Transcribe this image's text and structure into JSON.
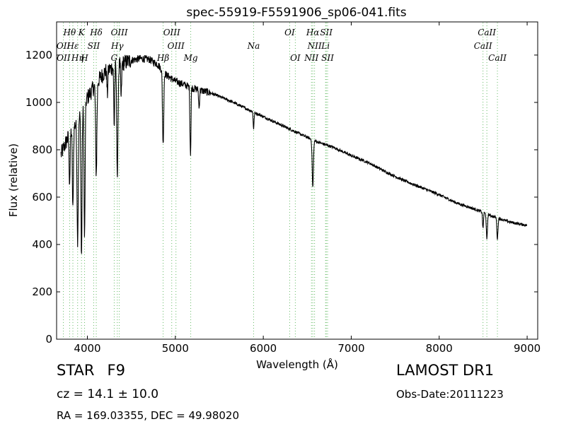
{
  "chart_data": {
    "type": "line",
    "title": "spec-55919-F5591906_sp06-041.fits",
    "xlabel": "Wavelength (Å)",
    "ylabel": "Flux (relative)",
    "xlim": [
      3650,
      9120
    ],
    "ylim": [
      0,
      1340
    ],
    "xticks": [
      4000,
      5000,
      6000,
      7000,
      8000,
      9000
    ],
    "yticks": [
      0,
      200,
      400,
      600,
      800,
      1000,
      1200
    ],
    "grid": false,
    "line_color": "#000000",
    "marker_color": "#66bb66",
    "continuum": {
      "x": [
        3700,
        3800,
        3900,
        4000,
        4100,
        4200,
        4300,
        4400,
        4500,
        4600,
        4700,
        4800,
        4900,
        5000,
        5200,
        5400,
        5600,
        5800,
        6000,
        6200,
        6400,
        6600,
        6800,
        7000,
        7200,
        7400,
        7600,
        7800,
        8000,
        8200,
        8400,
        8600,
        8800,
        9000
      ],
      "y": [
        780,
        870,
        930,
        1020,
        1080,
        1130,
        1150,
        1165,
        1178,
        1185,
        1182,
        1160,
        1115,
        1090,
        1060,
        1040,
        1010,
        975,
        940,
        905,
        870,
        835,
        810,
        775,
        745,
        705,
        670,
        640,
        610,
        575,
        550,
        520,
        495,
        480
      ]
    },
    "absorption_lines": [
      {
        "center": 3798,
        "depth": 200,
        "width": 6
      },
      {
        "center": 3835,
        "depth": 350,
        "width": 6
      },
      {
        "center": 3889,
        "depth": 500,
        "width": 7
      },
      {
        "center": 3933,
        "depth": 620,
        "width": 6
      },
      {
        "center": 3968,
        "depth": 560,
        "width": 6
      },
      {
        "center": 4101,
        "depth": 380,
        "width": 7
      },
      {
        "center": 4227,
        "depth": 100,
        "width": 5
      },
      {
        "center": 4305,
        "depth": 250,
        "width": 5
      },
      {
        "center": 4341,
        "depth": 470,
        "width": 7
      },
      {
        "center": 4384,
        "depth": 150,
        "width": 5
      },
      {
        "center": 4861,
        "depth": 310,
        "width": 7
      },
      {
        "center": 5168,
        "depth": 180,
        "width": 4
      },
      {
        "center": 5175,
        "depth": 220,
        "width": 4
      },
      {
        "center": 5270,
        "depth": 80,
        "width": 5
      },
      {
        "center": 5890,
        "depth": 70,
        "width": 5
      },
      {
        "center": 6563,
        "depth": 200,
        "width": 7
      },
      {
        "center": 8498,
        "depth": 70,
        "width": 5
      },
      {
        "center": 8542,
        "depth": 110,
        "width": 6
      },
      {
        "center": 8662,
        "depth": 90,
        "width": 6
      }
    ],
    "line_markers": {
      "top": [
        {
          "label": "Hθ",
          "x": 3798
        },
        {
          "label": "K",
          "x": 3933
        },
        {
          "label": "Hδ",
          "x": 4101
        },
        {
          "label": "OIII",
          "x": 4363
        },
        {
          "label": "OIII",
          "x": 4959
        },
        {
          "label": "OI",
          "x": 6300
        },
        {
          "label": "Hα",
          "x": 6563
        },
        {
          "label": "SII",
          "x": 6716
        },
        {
          "label": "CaII",
          "x": 8542
        }
      ],
      "upper": [
        {
          "label": "OII",
          "x": 3727
        },
        {
          "label": "Hε",
          "x": 3835
        },
        {
          "label": "SII",
          "x": 4072
        },
        {
          "label": "Hγ",
          "x": 4340
        },
        {
          "label": "OIII",
          "x": 5007
        },
        {
          "label": "Na",
          "x": 5890
        },
        {
          "label": "NII",
          "x": 6583
        },
        {
          "label": "Li",
          "x": 6708
        },
        {
          "label": "CaII",
          "x": 8498
        }
      ],
      "lower": [
        {
          "label": "OII",
          "x": 3729
        },
        {
          "label": "Hη",
          "x": 3889
        },
        {
          "label": "H",
          "x": 3968
        },
        {
          "label": "G",
          "x": 4305
        },
        {
          "label": "Hβ",
          "x": 4861
        },
        {
          "label": "Mg",
          "x": 5175
        },
        {
          "label": "OI",
          "x": 6364
        },
        {
          "label": "NII",
          "x": 6548
        },
        {
          "label": "SII",
          "x": 6731
        },
        {
          "label": "CaII",
          "x": 8662
        }
      ]
    }
  },
  "info": {
    "class": "STAR",
    "subclass": "F9",
    "cz_text": "cz = 14.1",
    "cz_err_text": "± 10.0",
    "survey": "LAMOST DR1",
    "obs_date": "Obs-Date:20111223",
    "radec": "RA = 169.03355, DEC = 49.98020"
  }
}
